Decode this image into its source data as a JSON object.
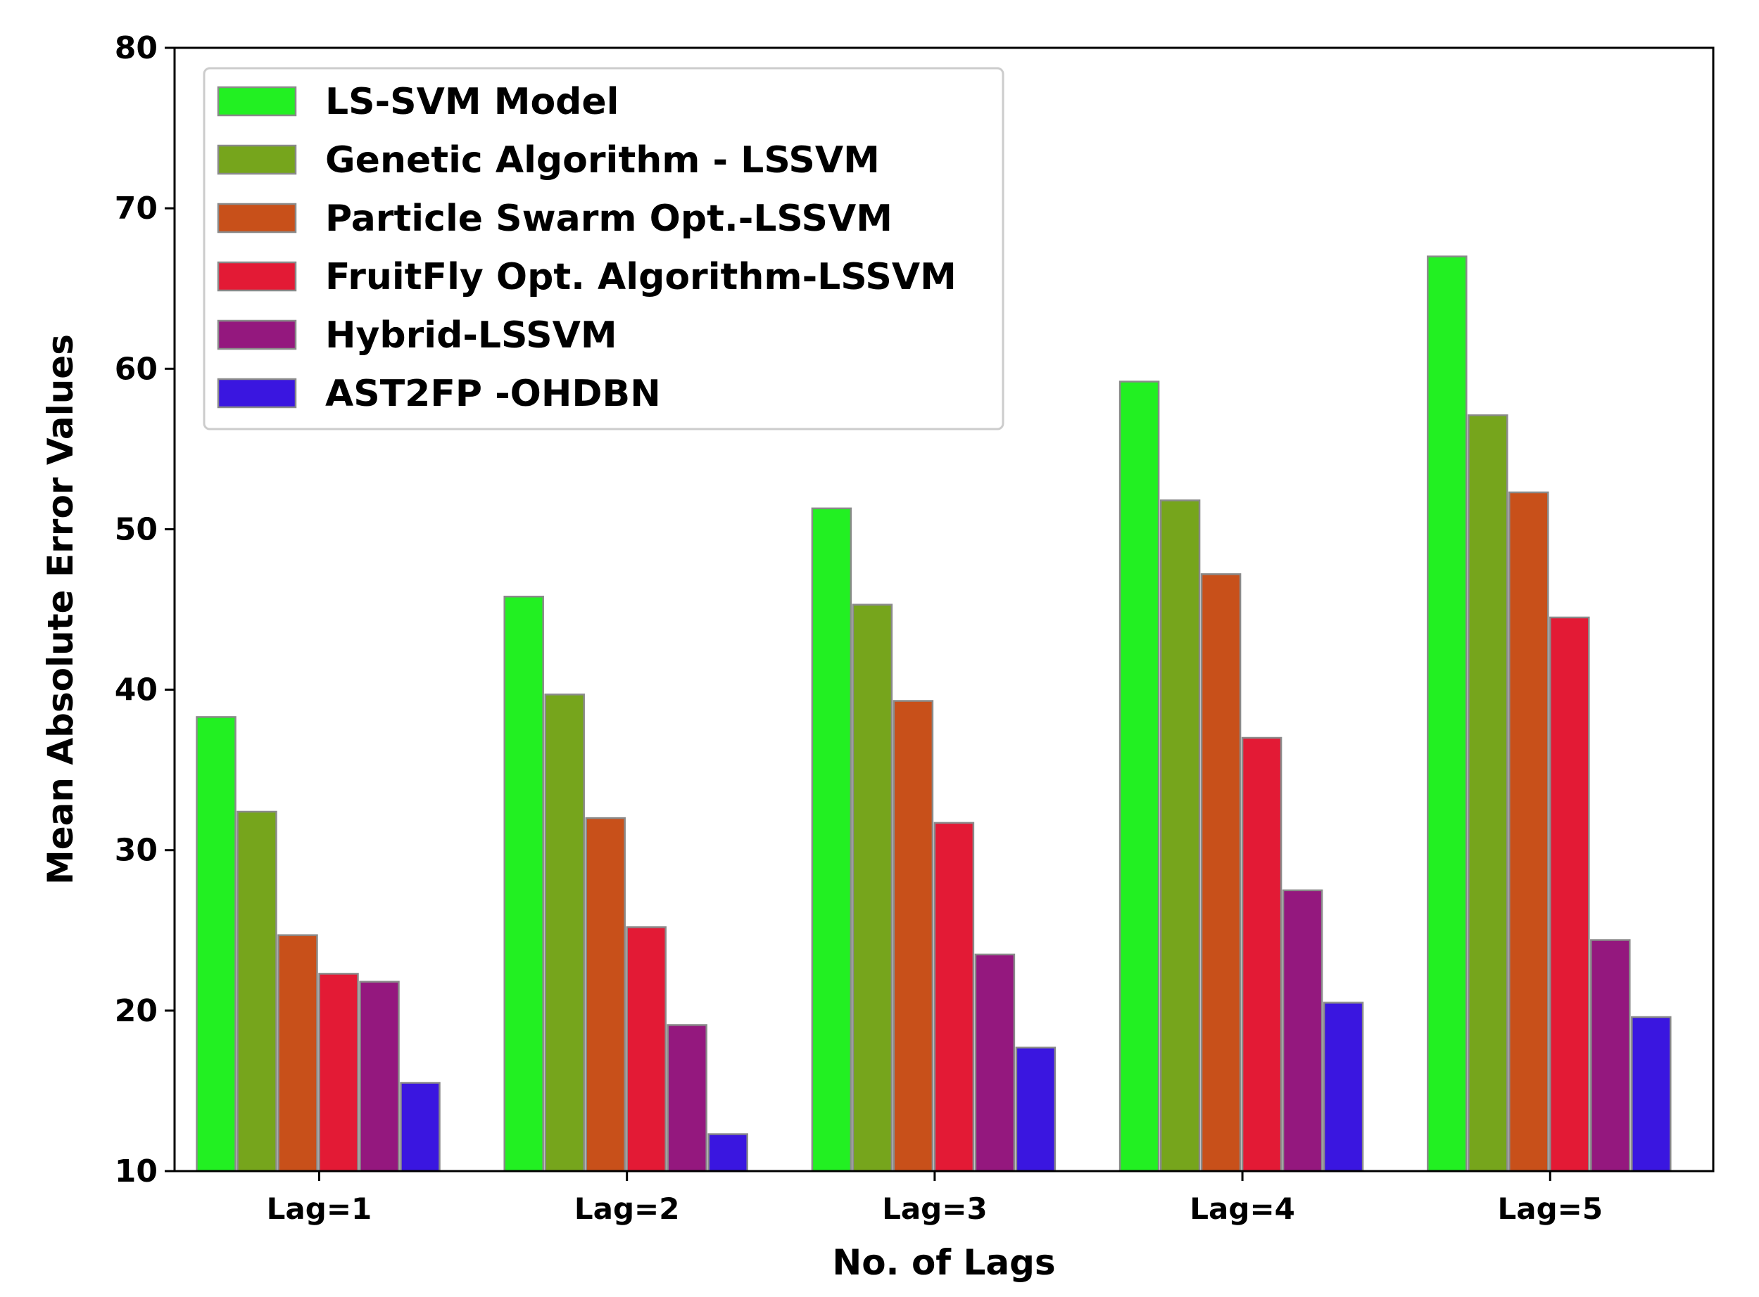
{
  "chart_data": {
    "type": "bar",
    "title": "",
    "xlabel": "No. of Lags",
    "ylabel": "Mean Absolute Error Values",
    "ylim": [
      10,
      80
    ],
    "yticks": [
      "10",
      "20",
      "30",
      "40",
      "50",
      "60",
      "70",
      "80"
    ],
    "grid": false,
    "legend_position": "top-left",
    "categories": [
      "Lag=1",
      "Lag=2",
      "Lag=3",
      "Lag=4",
      "Lag=5"
    ],
    "series": [
      {
        "name": "LS-SVM Model",
        "color": "#22f022",
        "values": [
          38.3,
          45.8,
          51.3,
          59.2,
          67.0
        ]
      },
      {
        "name": "Genetic Algorithm - LSSVM",
        "color": "#76a51c",
        "values": [
          32.4,
          39.7,
          45.3,
          51.8,
          57.1
        ]
      },
      {
        "name": "Particle Swarm Opt.-LSSVM",
        "color": "#c8501a",
        "values": [
          24.7,
          32.0,
          39.3,
          47.2,
          52.3
        ]
      },
      {
        "name": "FruitFly Opt. Algorithm-LSSVM",
        "color": "#e31a35",
        "values": [
          22.3,
          25.2,
          31.7,
          37.0,
          44.5
        ]
      },
      {
        "name": "Hybrid-LSSVM",
        "color": "#94187e",
        "values": [
          21.8,
          19.1,
          23.5,
          27.5,
          24.4
        ]
      },
      {
        "name": "AST2FP -OHDBN",
        "color": "#3a16e0",
        "values": [
          15.5,
          12.3,
          17.7,
          20.5,
          19.6
        ]
      }
    ]
  }
}
